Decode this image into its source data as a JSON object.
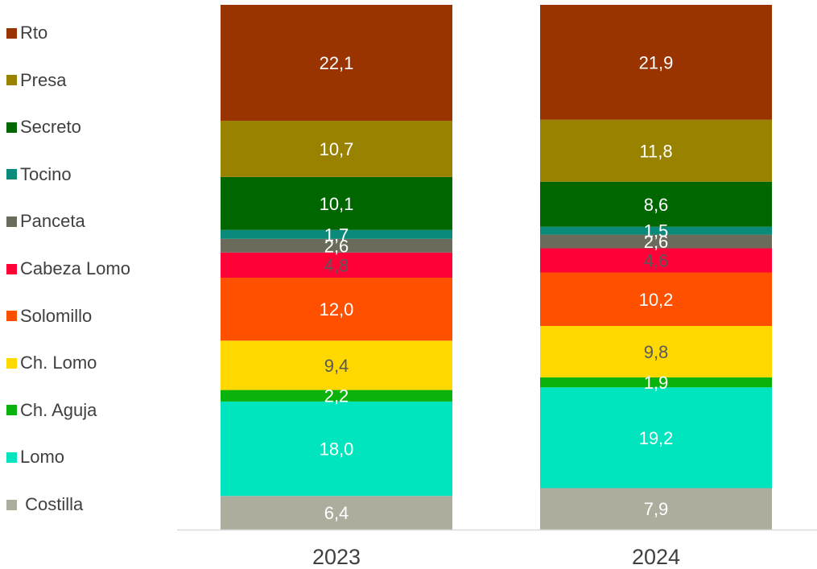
{
  "chart_data": {
    "type": "bar",
    "stacked": true,
    "normalized": true,
    "categories": [
      "2023",
      "2024"
    ],
    "series": [
      {
        "name": "Costilla",
        "values": [
          6.4,
          7.9
        ],
        "color": "#ADAD9E",
        "label_color": "#FFFFFF"
      },
      {
        "name": "Lomo",
        "values": [
          18.0,
          19.2
        ],
        "color": "#00E5BE",
        "label_color": "#FFFFFF"
      },
      {
        "name": "Ch. Aguja",
        "values": [
          2.2,
          1.9
        ],
        "color": "#0CB20C",
        "label_color": "#FFFFFF"
      },
      {
        "name": "Ch. Lomo",
        "values": [
          9.4,
          9.8
        ],
        "color": "#FFD800",
        "label_color": "#595959"
      },
      {
        "name": "Solomillo",
        "values": [
          12.0,
          10.2
        ],
        "color": "#FF5000",
        "label_color": "#FFFFFF"
      },
      {
        "name": "Cabeza Lomo",
        "values": [
          4.8,
          4.6
        ],
        "color": "#FF0037",
        "label_color": "#595959"
      },
      {
        "name": "Panceta",
        "values": [
          2.6,
          2.6
        ],
        "color": "#6B6B5B",
        "label_color": "#FFFFFF"
      },
      {
        "name": "Tocino",
        "values": [
          1.7,
          1.5
        ],
        "color": "#098A7A",
        "label_color": "#FFFFFF"
      },
      {
        "name": "Secreto",
        "values": [
          10.1,
          8.6
        ],
        "color": "#006600",
        "label_color": "#FFFFFF"
      },
      {
        "name": "Presa",
        "values": [
          10.7,
          11.8
        ],
        "color": "#998200",
        "label_color": "#FFFFFF"
      },
      {
        "name": "Rto",
        "values": [
          22.1,
          21.9
        ],
        "color": "#993300",
        "label_color": "#FFFFFF"
      }
    ],
    "data_labels": [
      [
        "6,4",
        "18,0",
        "2,2",
        "9,4",
        "12,0",
        "4,8",
        "2,6",
        "1,7",
        "10,1",
        "10,7",
        "22,1"
      ],
      [
        "7,9",
        "19,2",
        "1,9",
        "9,8",
        "10,2",
        "4,6",
        "2,6",
        "1,5",
        "8,6",
        "11,8",
        "21,9"
      ]
    ],
    "legend": {
      "position": "left",
      "entries": [
        "Rto",
        "Presa",
        "Secreto",
        "Tocino",
        "Panceta",
        "Cabeza Lomo",
        "Solomillo",
        "Ch. Lomo",
        "Ch. Aguja",
        "Lomo",
        " Costilla"
      ]
    },
    "colors": {
      "axis_line": "#D9D9D9",
      "tick_label": "#404040"
    },
    "grid": false
  }
}
